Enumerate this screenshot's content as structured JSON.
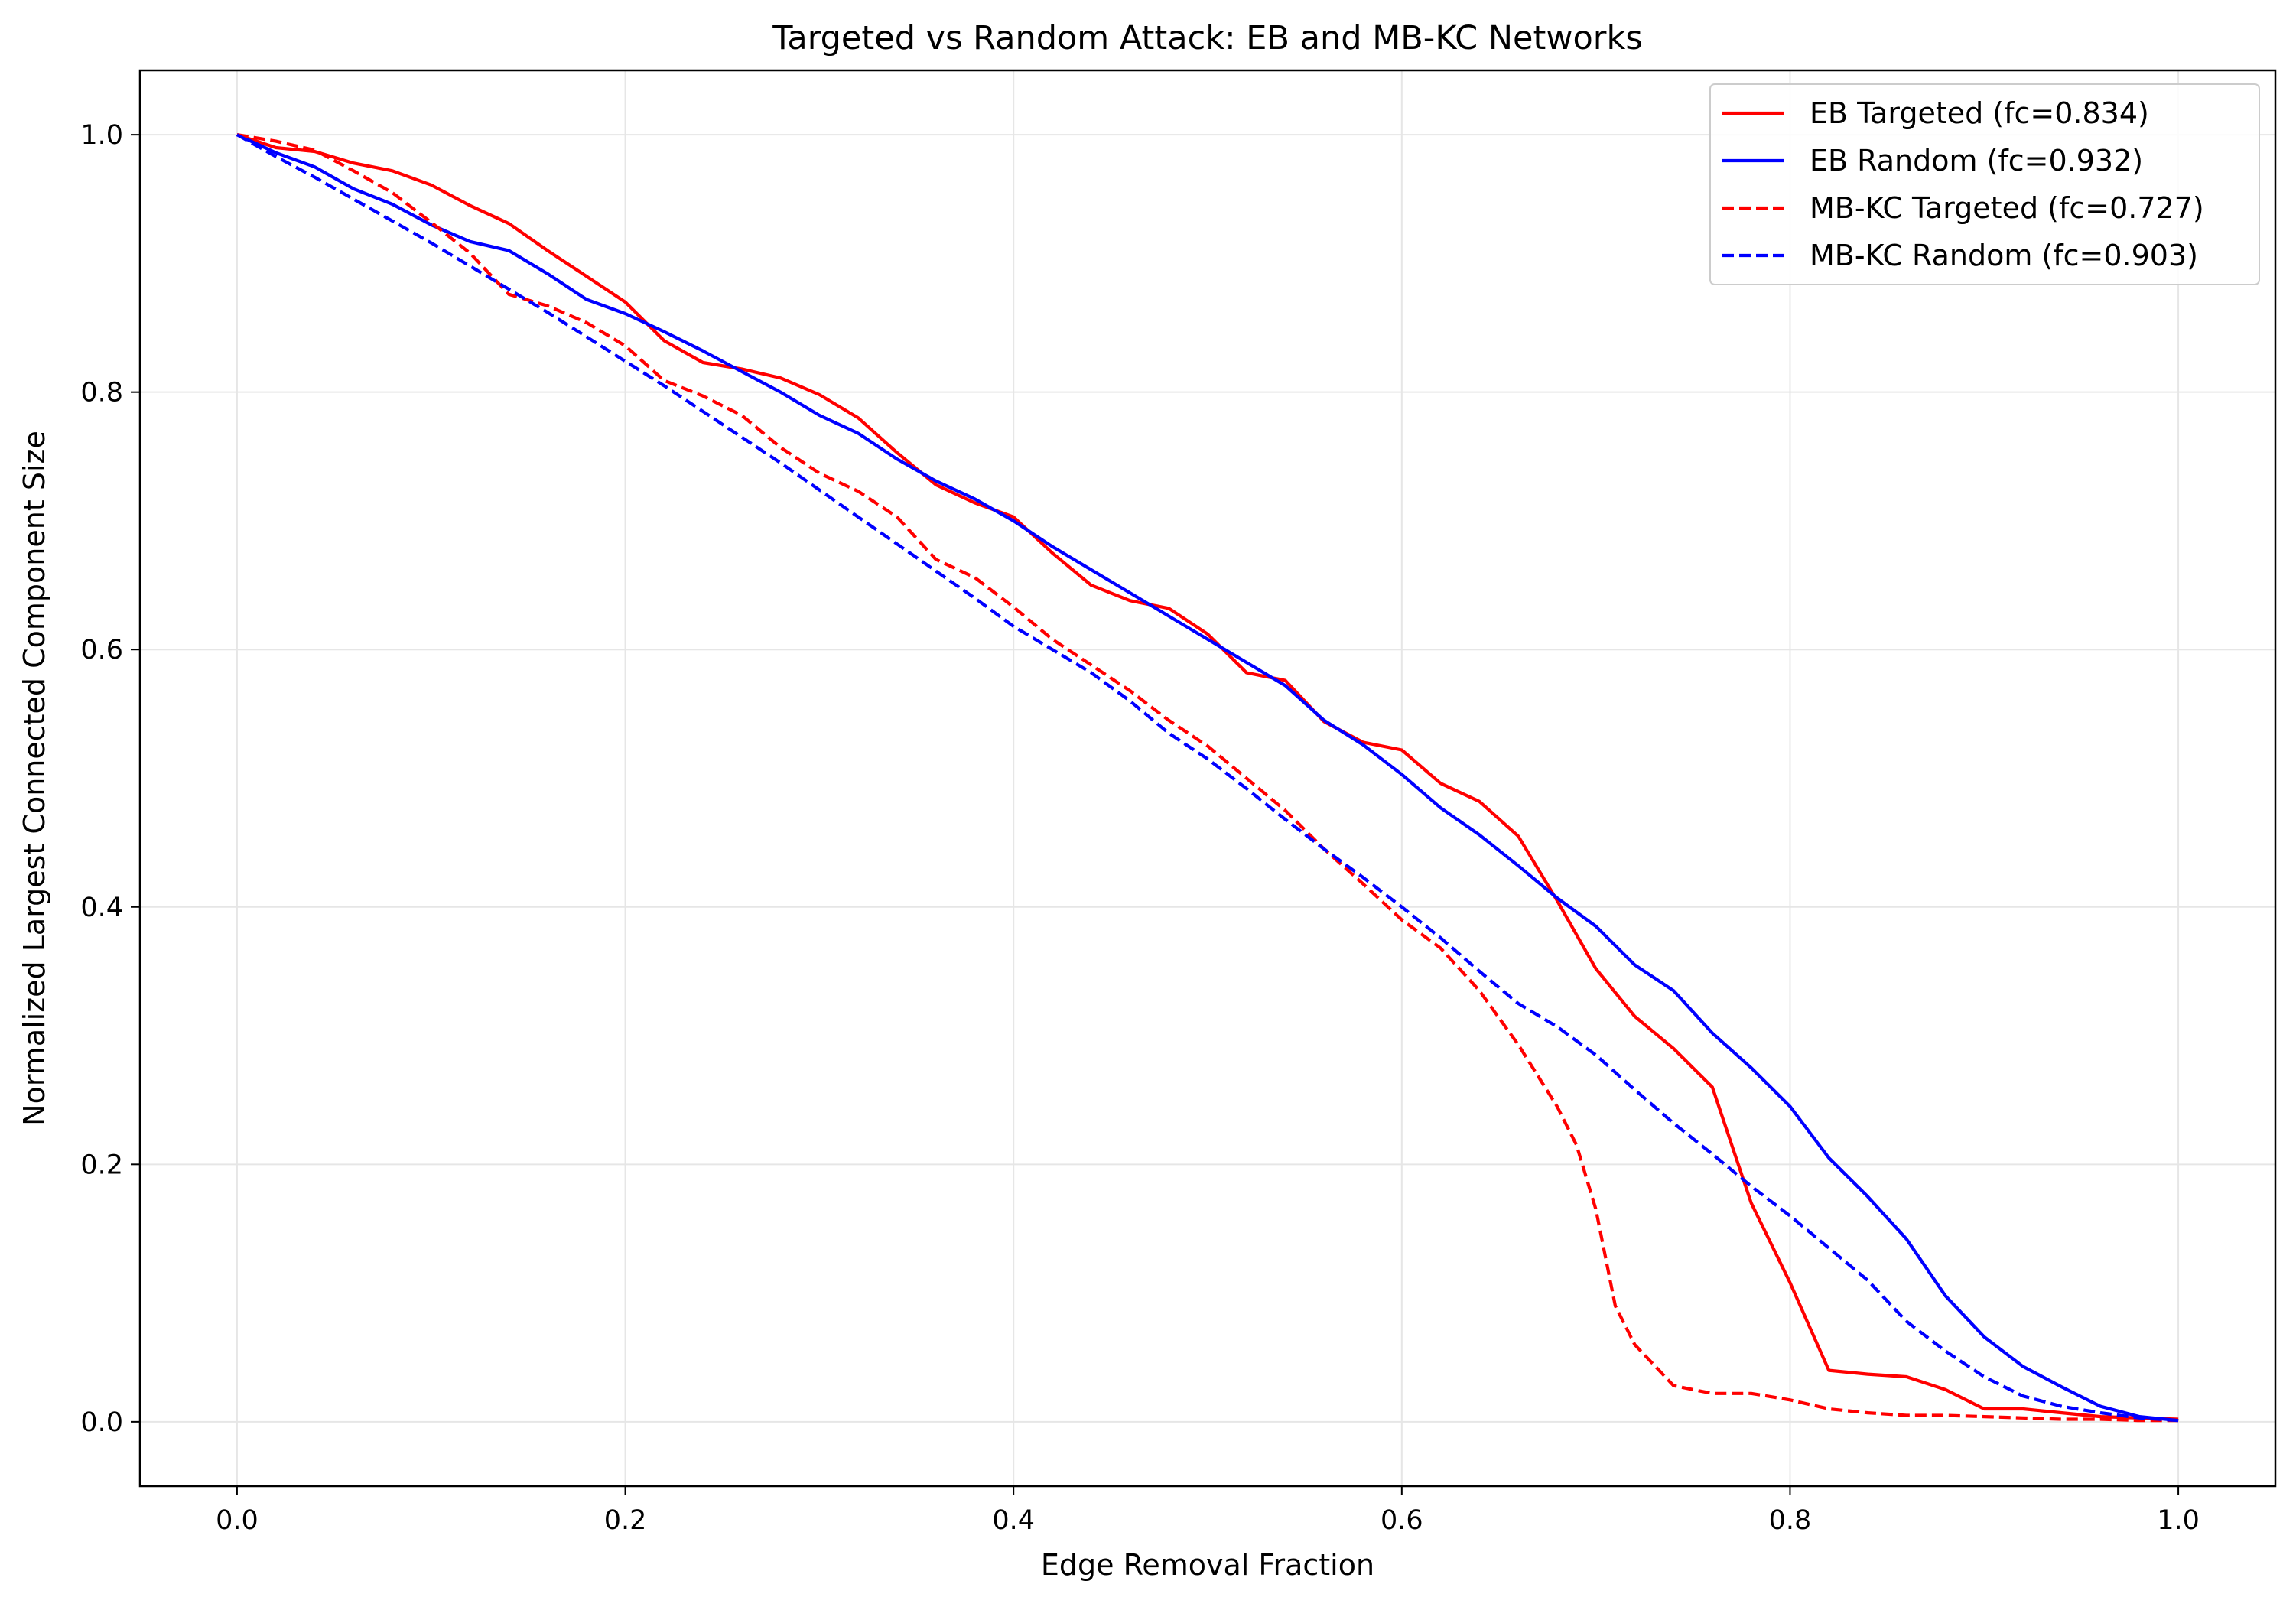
{
  "chart_data": {
    "type": "line",
    "title": "Targeted vs Random Attack: EB and MB-KC Networks",
    "xlabel": "Edge Removal Fraction",
    "ylabel": "Normalized Largest Connected Component Size",
    "xlim": [
      -0.05,
      1.05
    ],
    "ylim": [
      -0.05,
      1.05
    ],
    "xticks": [
      0.0,
      0.2,
      0.4,
      0.6,
      0.8,
      1.0
    ],
    "xtick_labels": [
      "0.0",
      "0.2",
      "0.4",
      "0.6",
      "0.8",
      "1.0"
    ],
    "yticks": [
      0.0,
      0.2,
      0.4,
      0.6,
      0.8,
      1.0
    ],
    "ytick_labels": [
      "0.0",
      "0.2",
      "0.4",
      "0.6",
      "0.8",
      "1.0"
    ],
    "grid": true,
    "legend_position": "top-right",
    "series": [
      {
        "name": "EB Targeted (fc=0.834)",
        "color": "#ff0000",
        "line_style": "solid",
        "x": [
          0.0,
          0.02,
          0.04,
          0.06,
          0.08,
          0.1,
          0.12,
          0.14,
          0.16,
          0.18,
          0.2,
          0.22,
          0.24,
          0.26,
          0.28,
          0.3,
          0.32,
          0.34,
          0.36,
          0.38,
          0.4,
          0.42,
          0.44,
          0.46,
          0.48,
          0.5,
          0.52,
          0.54,
          0.56,
          0.58,
          0.6,
          0.62,
          0.64,
          0.66,
          0.68,
          0.7,
          0.72,
          0.74,
          0.76,
          0.78,
          0.8,
          0.82,
          0.84,
          0.86,
          0.88,
          0.9,
          0.92,
          0.94,
          0.96,
          0.98,
          1.0
        ],
        "y": [
          1.0,
          0.99,
          0.987,
          0.978,
          0.972,
          0.961,
          0.945,
          0.931,
          0.91,
          0.89,
          0.87,
          0.84,
          0.823,
          0.818,
          0.811,
          0.798,
          0.78,
          0.753,
          0.728,
          0.714,
          0.703,
          0.675,
          0.65,
          0.638,
          0.632,
          0.612,
          0.582,
          0.576,
          0.544,
          0.528,
          0.522,
          0.496,
          0.482,
          0.455,
          0.405,
          0.352,
          0.315,
          0.29,
          0.26,
          0.17,
          0.108,
          0.04,
          0.037,
          0.035,
          0.025,
          0.01,
          0.01,
          0.007,
          0.004,
          0.003,
          0.002
        ]
      },
      {
        "name": "EB Random (fc=0.932)",
        "color": "#0000ff",
        "line_style": "solid",
        "x": [
          0.0,
          0.02,
          0.04,
          0.06,
          0.08,
          0.1,
          0.12,
          0.14,
          0.16,
          0.18,
          0.2,
          0.22,
          0.24,
          0.26,
          0.28,
          0.3,
          0.32,
          0.34,
          0.36,
          0.38,
          0.4,
          0.42,
          0.44,
          0.46,
          0.48,
          0.5,
          0.52,
          0.54,
          0.56,
          0.58,
          0.6,
          0.62,
          0.64,
          0.66,
          0.68,
          0.7,
          0.72,
          0.74,
          0.76,
          0.78,
          0.8,
          0.82,
          0.84,
          0.86,
          0.88,
          0.9,
          0.92,
          0.94,
          0.96,
          0.98,
          1.0
        ],
        "y": [
          1.0,
          0.986,
          0.975,
          0.958,
          0.946,
          0.93,
          0.917,
          0.91,
          0.892,
          0.872,
          0.861,
          0.847,
          0.832,
          0.816,
          0.8,
          0.782,
          0.768,
          0.748,
          0.731,
          0.717,
          0.7,
          0.68,
          0.662,
          0.644,
          0.626,
          0.608,
          0.59,
          0.572,
          0.545,
          0.526,
          0.503,
          0.477,
          0.456,
          0.432,
          0.407,
          0.385,
          0.355,
          0.335,
          0.302,
          0.275,
          0.245,
          0.205,
          0.175,
          0.142,
          0.098,
          0.066,
          0.043,
          0.027,
          0.012,
          0.004,
          0.001
        ]
      },
      {
        "name": "MB-KC Targeted (fc=0.727)",
        "color": "#ff0000",
        "line_style": "dashed",
        "x": [
          0.0,
          0.02,
          0.04,
          0.06,
          0.08,
          0.1,
          0.12,
          0.14,
          0.16,
          0.18,
          0.2,
          0.22,
          0.24,
          0.26,
          0.28,
          0.3,
          0.32,
          0.34,
          0.36,
          0.38,
          0.4,
          0.42,
          0.44,
          0.46,
          0.48,
          0.5,
          0.52,
          0.54,
          0.56,
          0.58,
          0.6,
          0.62,
          0.64,
          0.66,
          0.68,
          0.69,
          0.7,
          0.71,
          0.72,
          0.74,
          0.76,
          0.78,
          0.8,
          0.82,
          0.84,
          0.86,
          0.88,
          0.9,
          0.92,
          0.94,
          0.96,
          0.98,
          1.0
        ],
        "y": [
          1.0,
          0.995,
          0.988,
          0.972,
          0.955,
          0.932,
          0.908,
          0.876,
          0.867,
          0.854,
          0.836,
          0.809,
          0.797,
          0.782,
          0.757,
          0.737,
          0.723,
          0.703,
          0.67,
          0.656,
          0.633,
          0.608,
          0.588,
          0.568,
          0.545,
          0.525,
          0.5,
          0.475,
          0.445,
          0.418,
          0.39,
          0.368,
          0.335,
          0.293,
          0.245,
          0.215,
          0.165,
          0.09,
          0.06,
          0.028,
          0.022,
          0.022,
          0.017,
          0.01,
          0.007,
          0.005,
          0.005,
          0.004,
          0.003,
          0.002,
          0.002,
          0.001,
          0.001
        ]
      },
      {
        "name": "MB-KC Random (fc=0.903)",
        "color": "#0000ff",
        "line_style": "dashed",
        "x": [
          0.0,
          0.02,
          0.04,
          0.06,
          0.08,
          0.1,
          0.12,
          0.14,
          0.16,
          0.18,
          0.2,
          0.22,
          0.24,
          0.26,
          0.28,
          0.3,
          0.32,
          0.34,
          0.36,
          0.38,
          0.4,
          0.42,
          0.44,
          0.46,
          0.48,
          0.5,
          0.52,
          0.54,
          0.56,
          0.58,
          0.6,
          0.62,
          0.64,
          0.66,
          0.68,
          0.7,
          0.72,
          0.74,
          0.76,
          0.78,
          0.8,
          0.82,
          0.84,
          0.86,
          0.88,
          0.9,
          0.92,
          0.94,
          0.96,
          0.98,
          1.0
        ],
        "y": [
          1.0,
          0.983,
          0.967,
          0.95,
          0.933,
          0.916,
          0.898,
          0.88,
          0.862,
          0.843,
          0.824,
          0.805,
          0.785,
          0.765,
          0.745,
          0.724,
          0.703,
          0.682,
          0.661,
          0.64,
          0.618,
          0.6,
          0.582,
          0.56,
          0.535,
          0.515,
          0.492,
          0.468,
          0.445,
          0.423,
          0.4,
          0.376,
          0.35,
          0.325,
          0.307,
          0.285,
          0.258,
          0.232,
          0.208,
          0.183,
          0.16,
          0.135,
          0.11,
          0.078,
          0.055,
          0.035,
          0.02,
          0.012,
          0.007,
          0.003,
          0.001
        ]
      }
    ]
  }
}
